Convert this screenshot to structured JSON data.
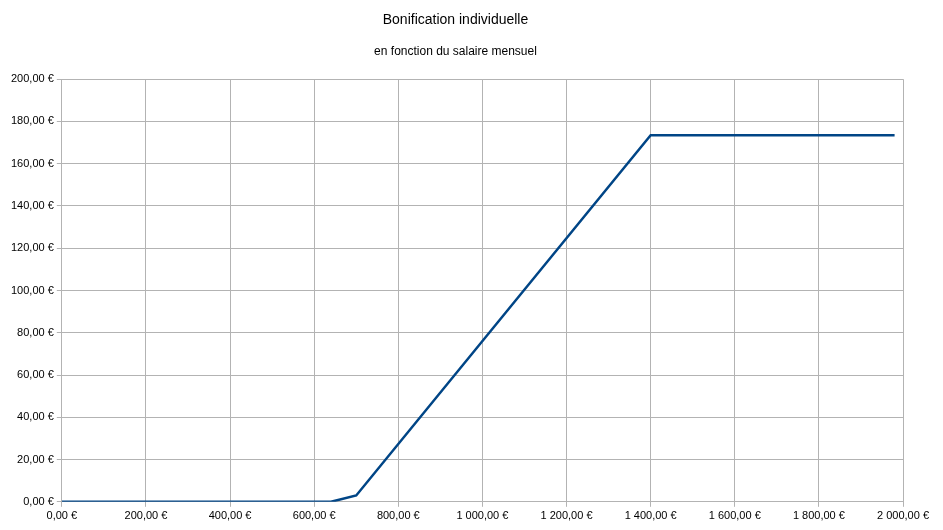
{
  "chart_data": {
    "type": "line",
    "title": "Bonification individuelle",
    "subtitle": "en fonction du salaire mensuel",
    "x": [
      0,
      640,
      700,
      1400,
      1980
    ],
    "values": [
      0,
      0,
      3,
      173.5,
      173.5
    ],
    "color": "#004586",
    "marker": "none",
    "line_style": "solid",
    "xlim": [
      0,
      2000
    ],
    "xticks": [
      {
        "value": 0,
        "label": "0,00 €"
      },
      {
        "value": 200,
        "label": "200,00 €"
      },
      {
        "value": 400,
        "label": "400,00 €"
      },
      {
        "value": 600,
        "label": "600,00 €"
      },
      {
        "value": 800,
        "label": "800,00 €"
      },
      {
        "value": 1000,
        "label": "1 000,00 €"
      },
      {
        "value": 1200,
        "label": "1 200,00 €"
      },
      {
        "value": 1400,
        "label": "1 400,00 €"
      },
      {
        "value": 1600,
        "label": "1 600,00 €"
      },
      {
        "value": 1800,
        "label": "1 800,00 €"
      },
      {
        "value": 2000,
        "label": "2 000,00 €"
      }
    ],
    "ylim": [
      0,
      200
    ],
    "yticks": [
      {
        "value": 0,
        "label": "0,00 €"
      },
      {
        "value": 20,
        "label": "20,00 €"
      },
      {
        "value": 40,
        "label": "40,00 €"
      },
      {
        "value": 60,
        "label": "60,00 €"
      },
      {
        "value": 80,
        "label": "80,00 €"
      },
      {
        "value": 100,
        "label": "100,00 €"
      },
      {
        "value": 120,
        "label": "120,00 €"
      },
      {
        "value": 140,
        "label": "140,00 €"
      },
      {
        "value": 160,
        "label": "160,00 €"
      },
      {
        "value": 180,
        "label": "180,00 €"
      },
      {
        "value": 200,
        "label": "200,00 €"
      }
    ],
    "grid": true
  }
}
